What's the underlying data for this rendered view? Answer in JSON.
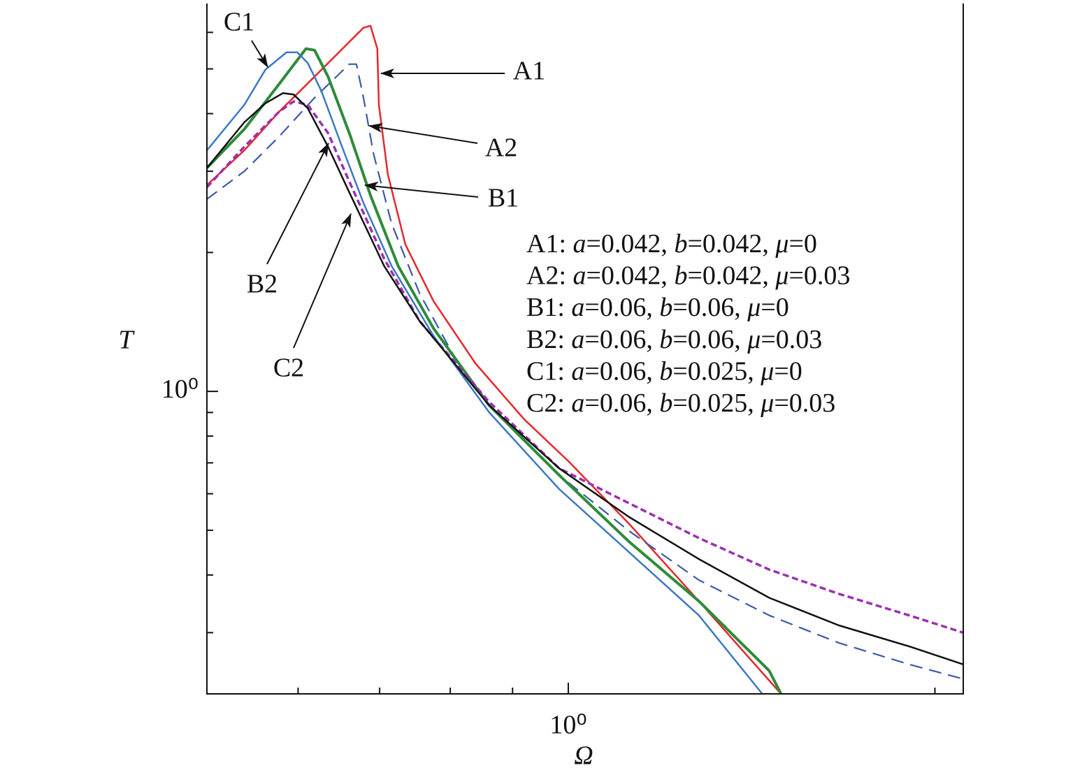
{
  "chart_data": {
    "type": "line",
    "xlabel": "Ω",
    "ylabel": "T",
    "xscale": "log",
    "yscale": "log",
    "xlim": [
      0.505,
      2.11
    ],
    "ylim": [
      0.221,
      6.93
    ],
    "xticks": [
      {
        "value": 1,
        "label": "10⁰"
      }
    ],
    "yticks": [
      {
        "value": 1,
        "label": "10⁰"
      }
    ],
    "xminor_ticks": [
      0.6,
      0.7,
      0.8,
      0.9,
      2
    ],
    "yminor_ticks": [
      0.3,
      0.4,
      0.5,
      0.6,
      0.7,
      0.8,
      0.9,
      2,
      3,
      4,
      5,
      6
    ],
    "series": [
      {
        "name": "A1",
        "legend": "A1: a=0.042, b=0.042, μ=0",
        "color": "#e8262a",
        "style": "solid",
        "width": 2.5,
        "x": [
          0.505,
          0.542,
          0.579,
          0.619,
          0.661,
          0.679,
          0.688,
          0.697,
          0.699,
          0.711,
          0.735,
          0.775,
          0.839,
          0.92,
          1,
          1.122,
          1.28,
          1.495
        ],
        "values": [
          2.8,
          3.33,
          4.04,
          4.81,
          5.72,
          6.14,
          6.2,
          5.53,
          4.18,
          2.95,
          2.08,
          1.57,
          1.15,
          0.87,
          0.706,
          0.516,
          0.351,
          0.221
        ]
      },
      {
        "name": "A2",
        "legend": "A2: a=0.042, b=0.042, μ=0.03",
        "color": "#3a5aa8",
        "style": "dashed",
        "width": 2.2,
        "x": [
          0.505,
          0.542,
          0.579,
          0.619,
          0.661,
          0.67,
          0.679,
          0.692,
          0.716,
          0.755,
          0.806,
          0.861,
          0.983,
          1.122,
          1.28,
          1.462,
          1.668,
          1.905,
          2.11
        ],
        "values": [
          2.61,
          3.0,
          3.57,
          4.33,
          5.12,
          5.12,
          4.33,
          3.27,
          2.31,
          1.63,
          1.19,
          0.933,
          0.658,
          0.498,
          0.39,
          0.327,
          0.285,
          0.256,
          0.238
        ]
      },
      {
        "name": "B1",
        "legend": "B1: a=0.06, b=0.06, μ=0",
        "color": "#2e8b3a",
        "style": "solid",
        "width": 4,
        "x": [
          0.505,
          0.542,
          0.579,
          0.609,
          0.619,
          0.635,
          0.661,
          0.688,
          0.725,
          0.775,
          0.861,
          0.983,
          1.122,
          1.28,
          1.462,
          1.495
        ],
        "values": [
          3.05,
          3.7,
          4.64,
          5.53,
          5.49,
          4.81,
          3.63,
          2.66,
          1.87,
          1.37,
          0.933,
          0.658,
          0.472,
          0.351,
          0.248,
          0.221
        ]
      },
      {
        "name": "B2",
        "legend": "B2: a=0.06, b=0.06, μ=0.03",
        "color": "#9b30b0",
        "style": "dotted",
        "width": 3.5,
        "x": [
          0.505,
          0.542,
          0.579,
          0.595,
          0.611,
          0.635,
          0.661,
          0.706,
          0.755,
          0.861,
          0.983,
          1.122,
          1.28,
          1.462,
          1.668,
          1.905,
          2.11
        ],
        "values": [
          2.77,
          3.39,
          4.04,
          4.25,
          4.18,
          3.63,
          2.85,
          1.94,
          1.42,
          0.949,
          0.681,
          0.572,
          0.481,
          0.411,
          0.364,
          0.327,
          0.3
        ]
      },
      {
        "name": "C1",
        "legend": "C1: a=0.06, b=0.025, μ=0",
        "color": "#3b78c3",
        "style": "solid",
        "width": 2.5,
        "x": [
          0.505,
          0.542,
          0.564,
          0.587,
          0.599,
          0.611,
          0.627,
          0.652,
          0.679,
          0.716,
          0.775,
          0.861,
          0.983,
          1.122,
          1.28,
          1.443
        ],
        "values": [
          3.33,
          4.18,
          4.98,
          5.43,
          5.43,
          5.15,
          4.48,
          3.39,
          2.56,
          1.87,
          1.32,
          0.901,
          0.614,
          0.448,
          0.327,
          0.221
        ]
      },
      {
        "name": "C2",
        "legend": "C2: a=0.06, b=0.025, μ=0.03",
        "color": "#111111",
        "style": "solid",
        "width": 2.5,
        "x": [
          0.505,
          0.542,
          0.564,
          0.583,
          0.595,
          0.611,
          0.635,
          0.661,
          0.706,
          0.755,
          0.861,
          0.983,
          1.122,
          1.28,
          1.462,
          1.668,
          1.905,
          2.11
        ],
        "values": [
          3.05,
          3.83,
          4.21,
          4.43,
          4.4,
          4.11,
          3.39,
          2.7,
          1.87,
          1.42,
          0.933,
          0.681,
          0.534,
          0.433,
          0.357,
          0.311,
          0.28,
          0.256
        ]
      }
    ]
  }
}
